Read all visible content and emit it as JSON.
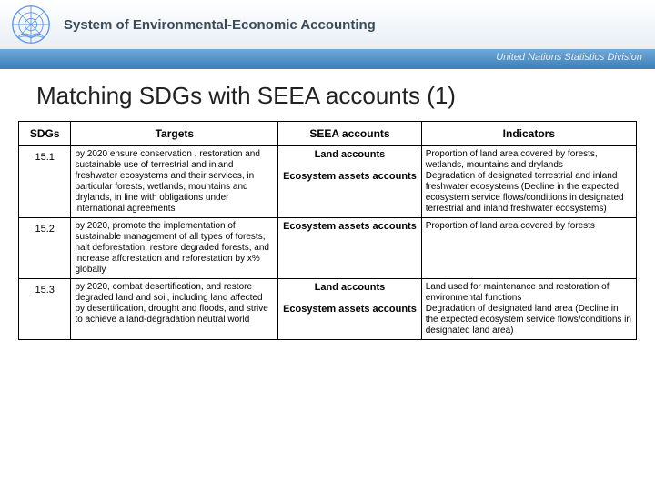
{
  "header": {
    "title": "System of Environmental-Economic Accounting",
    "subheader": "United Nations Statistics Division"
  },
  "slide_title": "Matching SDGs with SEEA accounts (1)",
  "table": {
    "columns": [
      "SDGs",
      "Targets",
      "SEEA accounts",
      "Indicators"
    ],
    "rows": [
      {
        "sdg": "15.1",
        "target": "by 2020 ensure conservation , restoration and sustainable use of terrestrial and inland freshwater ecosystems and their services, in particular forests, wetlands, mountains and drylands, in line with obligations under international agreements",
        "accounts": [
          "Land accounts",
          "Ecosystem assets accounts"
        ],
        "indicators": "Proportion of land area covered by forests, wetlands, mountains and drylands\nDegradation of designated terrestrial and inland freshwater ecosystems (Decline in the expected ecosystem service flows/conditions in designated terrestrial and inland freshwater ecosystems)"
      },
      {
        "sdg": "15.2",
        "target": "by 2020, promote the implementation of sustainable management of all types of forests, halt deforestation, restore degraded forests, and increase afforestation and reforestation by x% globally",
        "accounts": [
          "Ecosystem assets accounts"
        ],
        "indicators": "Proportion of land area covered by forests"
      },
      {
        "sdg": "15.3",
        "target": "by 2020, combat desertification, and restore degraded land and soil, including land affected by desertification, drought and floods, and strive to achieve a land-degradation neutral world",
        "accounts": [
          "Land accounts",
          "Ecosystem assets accounts"
        ],
        "indicators": "Land used for maintenance and restoration of environmental functions\nDegradation of designated land area (Decline in the expected ecosystem service flows/conditions in designated land area)"
      }
    ]
  },
  "colors": {
    "header_text": "#3b4a57",
    "subheader_bg_top": "#6fa8d8",
    "subheader_bg_bottom": "#3d7fb8",
    "un_blue": "#5b92e5"
  }
}
